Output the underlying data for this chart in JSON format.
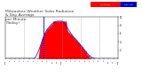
{
  "title": "Milwaukee Weather Solar Radiation",
  "title2": "& Day Average",
  "title3": "per Minute",
  "title4": "(Today)",
  "title_color": "#404040",
  "title_fontsize": 3.2,
  "bg_color": "#ffffff",
  "plot_bg_color": "#ffffff",
  "legend_red_label": "Solar Rad",
  "legend_blue_label": "Day Avg",
  "bar_color": "#ff0000",
  "line_color": "#0000ff",
  "n_points": 1440,
  "current_minute": 490,
  "ylim": [
    0,
    1000
  ],
  "xlim": [
    0,
    1440
  ],
  "grid_color": "#999999",
  "grid_positions": [
    240,
    480,
    720,
    960,
    1200
  ],
  "xtick_positions": [
    0,
    60,
    120,
    180,
    240,
    300,
    360,
    420,
    480,
    540,
    600,
    660,
    720,
    780,
    840,
    900,
    960,
    1020,
    1080,
    1140,
    1200,
    1260,
    1320,
    1380,
    1440
  ],
  "xtick_labels": [
    "12a",
    "1",
    "2",
    "3",
    "4",
    "5",
    "6",
    "7",
    "8",
    "9",
    "10",
    "11",
    "12p",
    "1",
    "2",
    "3",
    "4",
    "5",
    "6",
    "7",
    "8",
    "9",
    "10",
    "11",
    "12a"
  ],
  "ytick_positions": [
    200,
    400,
    600,
    800,
    1000
  ],
  "ytick_labels": [
    "2",
    "4",
    "6",
    "8",
    "10"
  ]
}
